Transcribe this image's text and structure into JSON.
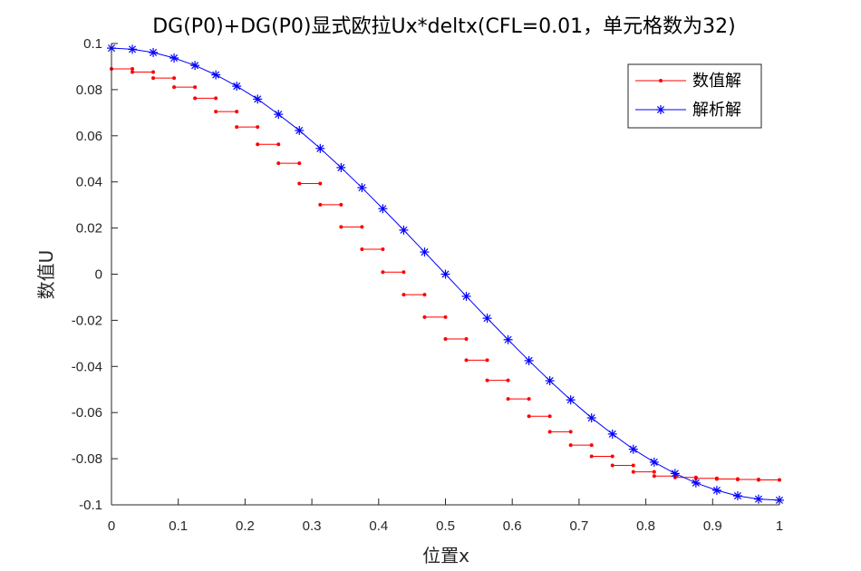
{
  "chart_data": {
    "type": "line",
    "title": "DG(P0)+DG(P0)显式欧拉Ux*deltx(CFL=0.01，单元格数为32)",
    "xlabel": "位置x",
    "ylabel": "数值U",
    "xlim": [
      0,
      1
    ],
    "ylim": [
      -0.1,
      0.1
    ],
    "xticks": [
      0,
      0.1,
      0.2,
      0.3,
      0.4,
      0.5,
      0.6,
      0.7,
      0.8,
      0.9,
      1
    ],
    "xtick_labels": [
      "0",
      "0.1",
      "0.2",
      "0.3",
      "0.4",
      "0.5",
      "0.6",
      "0.7",
      "0.8",
      "0.9",
      "1"
    ],
    "yticks": [
      -0.1,
      -0.08,
      -0.06,
      -0.04,
      -0.02,
      0,
      0.02,
      0.04,
      0.06,
      0.08,
      0.1
    ],
    "ytick_labels": [
      "-0.1",
      "-0.08",
      "-0.06",
      "-0.04",
      "-0.02",
      "0",
      "0.02",
      "0.04",
      "0.06",
      "0.08",
      "0.1"
    ],
    "grid": false,
    "legend_position": "top-right",
    "series": [
      {
        "name": "数值解",
        "color": "#ff0000",
        "style": "piecewise-constant",
        "marker": "dot",
        "cells": 32,
        "values": [
          0.089,
          0.0876,
          0.085,
          0.0811,
          0.0763,
          0.0705,
          0.0638,
          0.0563,
          0.0481,
          0.0393,
          0.0301,
          0.0205,
          0.0108,
          0.0009,
          -0.0089,
          -0.0186,
          -0.0281,
          -0.0373,
          -0.046,
          -0.0541,
          -0.0616,
          -0.0683,
          -0.0741,
          -0.079,
          -0.0829,
          -0.0857,
          -0.0875,
          -0.0881,
          -0.0885,
          -0.0888,
          -0.089,
          -0.0892
        ]
      },
      {
        "name": "解析解",
        "color": "#0000ff",
        "style": "line",
        "marker": "asterisk",
        "x": [
          0,
          0.03125,
          0.0625,
          0.09375,
          0.125,
          0.15625,
          0.1875,
          0.21875,
          0.25,
          0.28125,
          0.3125,
          0.34375,
          0.375,
          0.40625,
          0.4375,
          0.46875,
          0.5,
          0.53125,
          0.5625,
          0.59375,
          0.625,
          0.65625,
          0.6875,
          0.71875,
          0.75,
          0.78125,
          0.8125,
          0.84375,
          0.875,
          0.90625,
          0.9375,
          0.96875,
          1
        ],
        "y": [
          0.098,
          0.0975,
          0.0961,
          0.0937,
          0.0905,
          0.0864,
          0.0815,
          0.0759,
          0.0693,
          0.0623,
          0.0545,
          0.0462,
          0.0375,
          0.0284,
          0.0191,
          0.0096,
          0.0,
          -0.0096,
          -0.0191,
          -0.0284,
          -0.0375,
          -0.0462,
          -0.0545,
          -0.0623,
          -0.0693,
          -0.0759,
          -0.0815,
          -0.0864,
          -0.0905,
          -0.0937,
          -0.0961,
          -0.0975,
          -0.098
        ]
      }
    ]
  }
}
